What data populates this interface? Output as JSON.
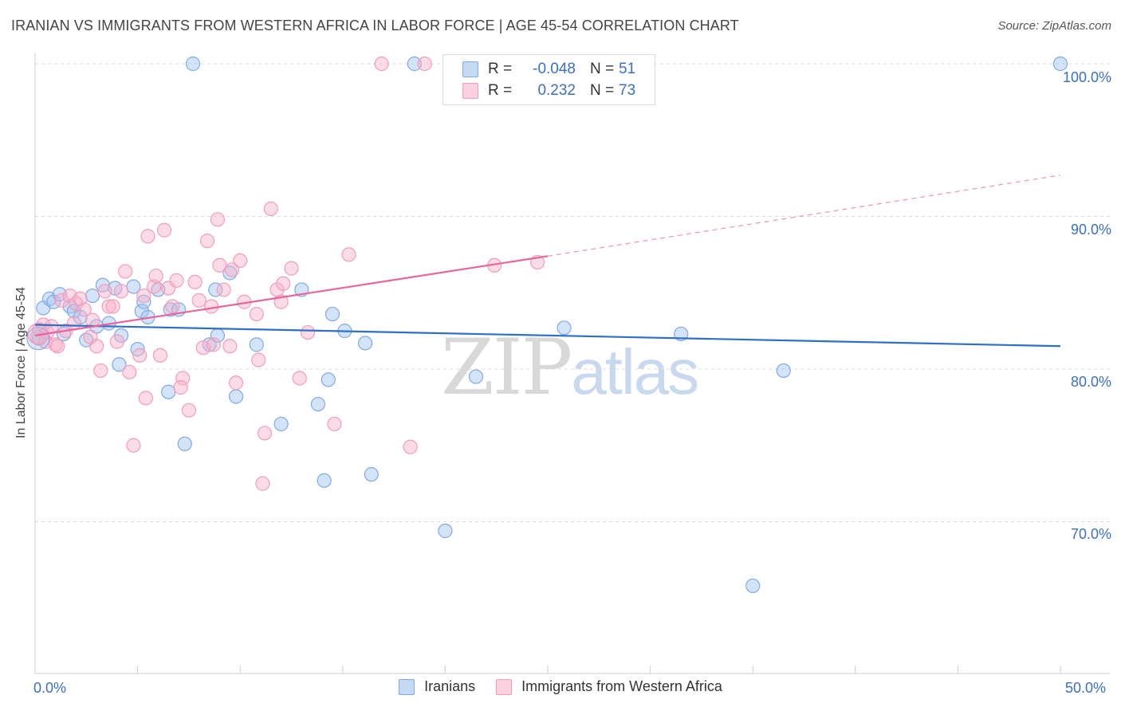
{
  "header": {
    "title": "IRANIAN VS IMMIGRANTS FROM WESTERN AFRICA IN LABOR FORCE | AGE 45-54 CORRELATION CHART",
    "source": "Source: ZipAtlas.com"
  },
  "watermark": {
    "zip": "ZIP",
    "atlas": "atlas"
  },
  "legend": {
    "rows": [
      {
        "r_label": "R =",
        "r_value": "-0.048",
        "n_label": "N =",
        "n_value": "51",
        "color": "#7ea9e6"
      },
      {
        "r_label": "R =",
        "r_value": "0.232",
        "n_label": "N =",
        "n_value": "73",
        "color": "#f19cbb"
      }
    ]
  },
  "bottom_legend": [
    {
      "label": "Iranians",
      "color": "#7ea9e6"
    },
    {
      "label": "Immigrants from Western Africa",
      "color": "#f19cbb"
    }
  ],
  "chart_data": {
    "type": "scatter",
    "title": "IRANIAN VS IMMIGRANTS FROM WESTERN AFRICA IN LABOR FORCE | AGE 45-54 CORRELATION CHART",
    "ylabel": "In Labor Force | Age 45-54",
    "xlabel": "",
    "xlim": [
      0,
      50
    ],
    "ylim": [
      62,
      101.5
    ],
    "x_tick_labels": [
      "0.0%",
      "50.0%"
    ],
    "y_ticks": [
      70,
      80,
      90,
      100
    ],
    "y_tick_labels": [
      "70.0%",
      "80.0%",
      "90.0%",
      "100.0%"
    ],
    "grid": true,
    "legend_position": "top-center",
    "series": [
      {
        "name": "Iranians",
        "color": "#7ea9e6",
        "line_color": "#2f6fc9",
        "trend": {
          "x": [
            0,
            50
          ],
          "y": [
            82.9,
            81.5
          ]
        },
        "points": [
          [
            0.2,
            82.0
          ],
          [
            0.4,
            84.0
          ],
          [
            0.7,
            84.6
          ],
          [
            0.9,
            84.4
          ],
          [
            1.2,
            84.9
          ],
          [
            1.4,
            82.3
          ],
          [
            1.7,
            84.1
          ],
          [
            1.9,
            83.8
          ],
          [
            2.2,
            83.4
          ],
          [
            2.5,
            81.9
          ],
          [
            2.8,
            84.8
          ],
          [
            3.0,
            82.8
          ],
          [
            3.3,
            85.5
          ],
          [
            3.6,
            83.0
          ],
          [
            3.9,
            85.3
          ],
          [
            4.2,
            82.2
          ],
          [
            4.1,
            80.3
          ],
          [
            4.8,
            85.4
          ],
          [
            5.0,
            81.3
          ],
          [
            5.2,
            83.8
          ],
          [
            5.5,
            83.4
          ],
          [
            5.3,
            84.4
          ],
          [
            6.0,
            85.2
          ],
          [
            6.5,
            78.5
          ],
          [
            6.6,
            83.9
          ],
          [
            7.0,
            83.9
          ],
          [
            7.3,
            75.1
          ],
          [
            7.7,
            100.0
          ],
          [
            8.5,
            81.6
          ],
          [
            8.8,
            85.2
          ],
          [
            8.9,
            82.2
          ],
          [
            9.5,
            86.3
          ],
          [
            9.8,
            78.2
          ],
          [
            10.8,
            81.6
          ],
          [
            12.0,
            76.4
          ],
          [
            13.0,
            85.2
          ],
          [
            13.8,
            77.7
          ],
          [
            14.1,
            72.7
          ],
          [
            14.3,
            79.3
          ],
          [
            14.5,
            83.6
          ],
          [
            15.1,
            82.5
          ],
          [
            16.1,
            81.7
          ],
          [
            16.4,
            73.1
          ],
          [
            18.5,
            100.0
          ],
          [
            20.0,
            69.4
          ],
          [
            21.5,
            79.5
          ],
          [
            25.8,
            82.7
          ],
          [
            31.5,
            82.3
          ],
          [
            35.0,
            65.8
          ],
          [
            36.5,
            79.9
          ],
          [
            50.0,
            100.0
          ]
        ]
      },
      {
        "name": "Immigrants from Western Africa",
        "color": "#f19cbb",
        "line_color": "#e8649a",
        "trend": {
          "x": [
            0,
            25
          ],
          "y": [
            82.2,
            87.4
          ]
        },
        "trend_dashed": {
          "x": [
            25,
            50
          ],
          "y": [
            87.4,
            92.7
          ]
        },
        "points": [
          [
            0.1,
            82.1
          ],
          [
            0.2,
            82.6
          ],
          [
            0.4,
            82.9
          ],
          [
            0.5,
            81.8
          ],
          [
            0.6,
            82.4
          ],
          [
            0.8,
            82.8
          ],
          [
            1.0,
            81.6
          ],
          [
            1.1,
            81.5
          ],
          [
            1.3,
            84.5
          ],
          [
            1.5,
            82.5
          ],
          [
            1.7,
            84.8
          ],
          [
            1.9,
            83.0
          ],
          [
            2.0,
            84.3
          ],
          [
            2.2,
            84.6
          ],
          [
            2.4,
            83.9
          ],
          [
            2.7,
            82.1
          ],
          [
            2.8,
            83.2
          ],
          [
            3.0,
            81.5
          ],
          [
            3.2,
            79.9
          ],
          [
            3.4,
            85.1
          ],
          [
            3.6,
            84.1
          ],
          [
            3.8,
            84.1
          ],
          [
            4.0,
            81.8
          ],
          [
            4.2,
            85.1
          ],
          [
            4.4,
            86.4
          ],
          [
            4.6,
            79.8
          ],
          [
            4.8,
            75.0
          ],
          [
            5.1,
            80.9
          ],
          [
            5.3,
            84.8
          ],
          [
            5.4,
            78.1
          ],
          [
            5.5,
            88.7
          ],
          [
            5.8,
            85.4
          ],
          [
            5.9,
            86.1
          ],
          [
            6.1,
            80.9
          ],
          [
            6.3,
            89.1
          ],
          [
            6.5,
            85.3
          ],
          [
            6.7,
            84.1
          ],
          [
            6.9,
            85.8
          ],
          [
            7.2,
            79.4
          ],
          [
            7.1,
            78.8
          ],
          [
            7.5,
            77.3
          ],
          [
            7.8,
            85.7
          ],
          [
            8.0,
            84.5
          ],
          [
            8.2,
            81.4
          ],
          [
            8.4,
            88.4
          ],
          [
            8.6,
            84.1
          ],
          [
            8.7,
            81.6
          ],
          [
            8.9,
            89.8
          ],
          [
            9.0,
            86.8
          ],
          [
            9.2,
            85.2
          ],
          [
            9.5,
            81.5
          ],
          [
            9.6,
            86.5
          ],
          [
            9.8,
            79.1
          ],
          [
            10.0,
            87.1
          ],
          [
            10.2,
            84.4
          ],
          [
            10.8,
            83.6
          ],
          [
            10.9,
            80.6
          ],
          [
            11.2,
            75.8
          ],
          [
            11.1,
            72.5
          ],
          [
            11.5,
            90.5
          ],
          [
            11.8,
            85.2
          ],
          [
            12.0,
            84.4
          ],
          [
            12.1,
            85.6
          ],
          [
            12.5,
            86.6
          ],
          [
            12.9,
            79.4
          ],
          [
            13.3,
            82.4
          ],
          [
            14.6,
            76.4
          ],
          [
            15.3,
            87.5
          ],
          [
            16.9,
            100.0
          ],
          [
            18.3,
            74.9
          ],
          [
            19.0,
            100.0
          ],
          [
            22.4,
            86.8
          ],
          [
            24.5,
            87.0
          ]
        ]
      }
    ]
  }
}
